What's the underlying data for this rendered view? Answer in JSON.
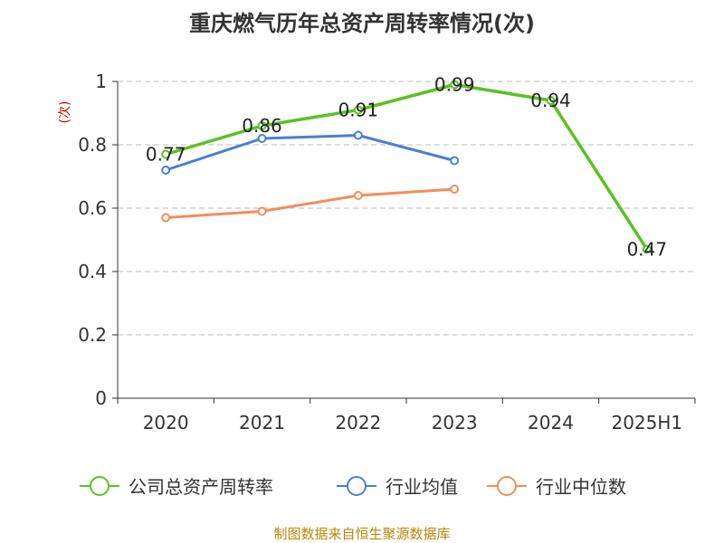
{
  "chart_data": {
    "type": "line",
    "title": "重庆燃气历年总资产周转率情况(次)",
    "ylabel": "(次)",
    "categories": [
      "2020",
      "2021",
      "2022",
      "2023",
      "2024",
      "2025H1"
    ],
    "ylim": [
      0,
      1
    ],
    "yticks": [
      "0",
      "0.2",
      "0.4",
      "0.6",
      "0.8",
      "1"
    ],
    "grid": true,
    "legend_position": "bottom",
    "series": [
      {
        "name": "公司总资产周转率",
        "color": "#5cc124",
        "values": [
          0.77,
          0.86,
          0.91,
          0.99,
          0.94,
          0.47
        ],
        "labels": [
          "0.77",
          "0.86",
          "0.91",
          "0.99",
          "0.94",
          "0.47"
        ]
      },
      {
        "name": "行业均值",
        "color": "#4a7fd6",
        "values": [
          0.72,
          0.82,
          0.83,
          0.75,
          null,
          null
        ]
      },
      {
        "name": "行业中位数",
        "color": "#f58c5c",
        "values": [
          0.57,
          0.59,
          0.64,
          0.66,
          null,
          null
        ]
      }
    ]
  },
  "source": "制图数据来自恒生聚源数据库"
}
